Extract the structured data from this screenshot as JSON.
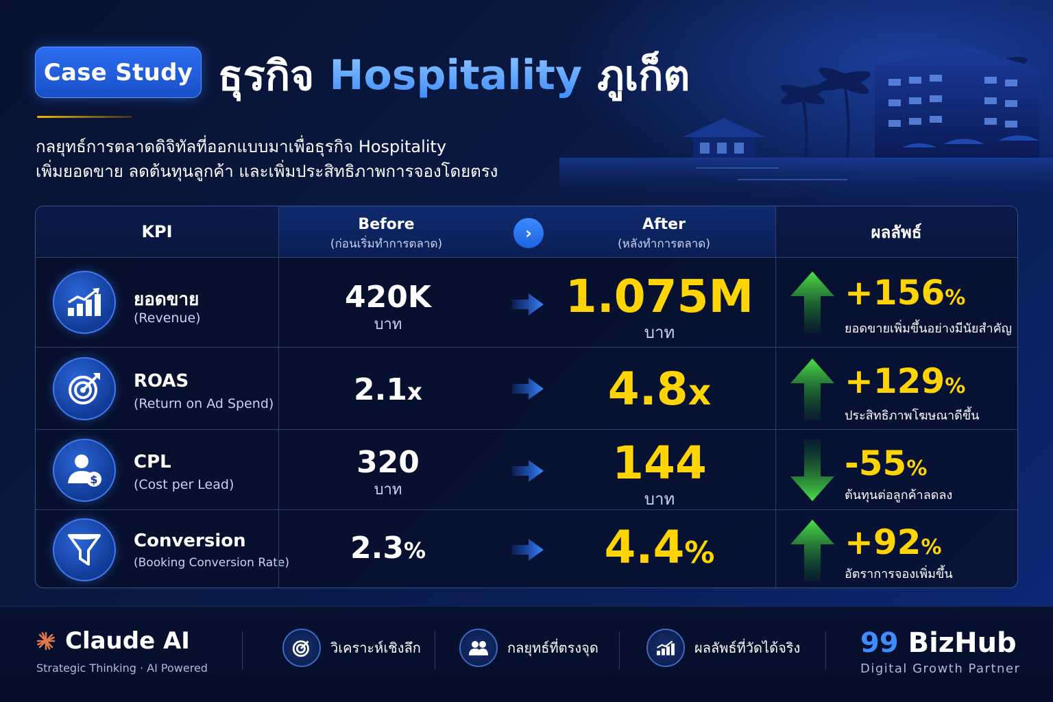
{
  "header": {
    "badge": "Case Study",
    "title_prefix": "ธุรกิจ",
    "title_highlight": "Hospitality",
    "title_suffix": "ภูเก็ต",
    "subtitle_line1": "กลยุทธ์การตลาดดิจิทัลที่ออกแบบมาเพื่อธุรกิจ Hospitality",
    "subtitle_line2": "เพิ่มยอดขาย ลดต้นทุนลูกค้า และเพิ่มประสิทธิภาพการจองโดยตรง"
  },
  "table": {
    "headers": {
      "kpi": "KPI",
      "before": "Before",
      "before_sub": "(ก่อนเริ่มทำการตลาด)",
      "after": "After",
      "after_sub": "(หลังทำการตลาด)",
      "result": "ผลลัพธ์"
    },
    "rows": [
      {
        "icon": "chart-growth-icon",
        "name": "ยอดขาย",
        "sub": "(Revenue)",
        "before": "420K",
        "before_unit": "บาท",
        "after": "1.075M",
        "after_unit": "บาท",
        "trend": "up",
        "result": "+156",
        "result_pct": "%",
        "result_text": "ยอดขายเพิ่มขึ้นอย่างมีนัยสำคัญ"
      },
      {
        "icon": "target-icon",
        "name": "ROAS",
        "sub": "(Return on Ad Spend)",
        "before": "2.1",
        "before_suffix": "x",
        "after": "4.8",
        "after_suffix": "x",
        "trend": "up",
        "result": "+129",
        "result_pct": "%",
        "result_text": "ประสิทธิภาพโฆษณาดีขึ้น"
      },
      {
        "icon": "user-cost-icon",
        "name": "CPL",
        "sub": "(Cost per Lead)",
        "before": "320",
        "before_unit": "บาท",
        "after": "144",
        "after_unit": "บาท",
        "trend": "down",
        "result": "-55",
        "result_pct": "%",
        "result_text": "ต้นทุนต่อลูกค้าลดลง"
      },
      {
        "icon": "funnel-icon",
        "name": "Conversion",
        "sub": "(Booking Conversion Rate)",
        "before": "2.3",
        "before_suffix": "%",
        "after": "4.4",
        "after_suffix": "%",
        "trend": "up",
        "result": "+92",
        "result_pct": "%",
        "result_text": "อัตราการจองเพิ่มขึ้น"
      }
    ]
  },
  "footer": {
    "left_brand": "Claude AI",
    "left_tag": "Strategic Thinking · AI Powered",
    "features": [
      {
        "icon": "target-icon",
        "label": "วิเคราะห์เชิงลึก"
      },
      {
        "icon": "users-icon",
        "label": "กลยุทธ์ที่ตรงจุด"
      },
      {
        "icon": "chart-growth-icon",
        "label": "ผลลัพธ์ที่วัดได้จริง"
      }
    ],
    "right_brand_num": "99",
    "right_brand_name": "BizHub",
    "right_tag": "Digital Growth Partner"
  },
  "colors": {
    "accent_yellow": "#ffd400",
    "accent_blue": "#3f8cff",
    "up_green": "#3ed13b",
    "down_green": "#3ed13b",
    "background": "#0a1a45"
  }
}
